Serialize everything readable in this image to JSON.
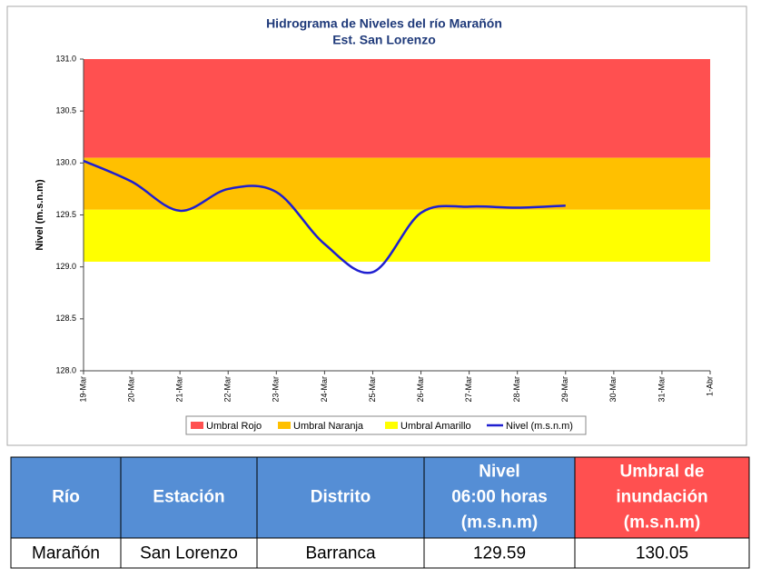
{
  "chart_data": {
    "type": "line",
    "title": [
      "Hidrograma de Niveles del río Marañón",
      "Est. San Lorenzo"
    ],
    "y_label": "Nivel (m.s.n.m)",
    "categories": [
      "19-Mar",
      "20-Mar",
      "21-Mar",
      "22-Mar",
      "23-Mar",
      "24-Mar",
      "25-Mar",
      "26-Mar",
      "27-Mar",
      "28-Mar",
      "29-Mar",
      "30-Mar",
      "31-Mar",
      "1-Abr"
    ],
    "bands": [
      {
        "name": "Umbral Rojo",
        "color": "#ff5050",
        "from": 130.05,
        "to": 131.0
      },
      {
        "name": "Umbral Naranja",
        "color": "#ffc000",
        "from": 129.55,
        "to": 130.05
      },
      {
        "name": "Umbral Amarillo",
        "color": "#ffff00",
        "from": 129.05,
        "to": 129.55
      }
    ],
    "series": [
      {
        "name": "Nivel (m.s.n.m)",
        "color": "#1f1fd0",
        "values": [
          130.02,
          129.82,
          129.54,
          129.75,
          129.72,
          129.22,
          128.95,
          129.52,
          129.58,
          129.57,
          129.59,
          null,
          null,
          null
        ]
      }
    ],
    "ylim": [
      128.0,
      131.0
    ],
    "yticks": [
      {
        "value": 128,
        "label": "128.0"
      },
      {
        "value": 128.5,
        "label": "128.5"
      },
      {
        "value": 129,
        "label": "129.0"
      },
      {
        "value": 129.5,
        "label": "129.5"
      },
      {
        "value": 130,
        "label": "130.0"
      },
      {
        "value": 130.5,
        "label": "130.5"
      },
      {
        "value": 131,
        "label": "131.0"
      }
    ]
  },
  "table": {
    "header": [
      [
        "Río"
      ],
      [
        "Estación"
      ],
      [
        "Distrito"
      ],
      [
        "Nivel",
        "06:00 horas",
        "(m.s.n.m)"
      ],
      [
        "Umbral de",
        "inundación",
        "(m.s.n.m)"
      ]
    ],
    "rows": [
      [
        "Marañón",
        "San Lorenzo",
        "Barranca",
        "129.59",
        "130.05"
      ]
    ]
  }
}
